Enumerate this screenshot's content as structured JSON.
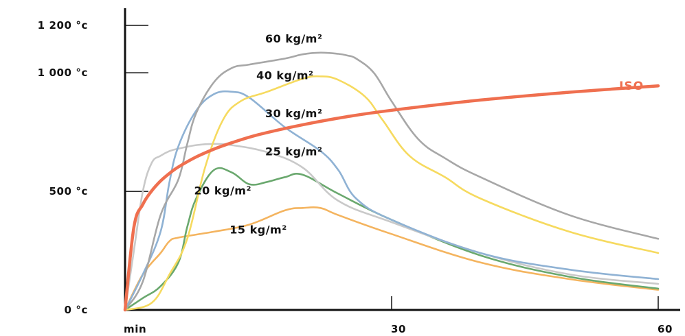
{
  "chart_data": {
    "type": "line",
    "title": "",
    "xlabel": "",
    "ylabel": "",
    "xlim": [
      0,
      60
    ],
    "ylim": [
      0,
      1200
    ],
    "grid": false,
    "legend": "none",
    "x_ticks": [
      {
        "value": 0,
        "label": "min"
      },
      {
        "value": 30,
        "label": "30"
      },
      {
        "value": 60,
        "label": "60"
      }
    ],
    "y_ticks": [
      {
        "value": 0,
        "label": "0 °c"
      },
      {
        "value": 500,
        "label": "500 °c"
      },
      {
        "value": 1000,
        "label": "1 000 °c"
      },
      {
        "value": 1200,
        "label": "1 200 °c"
      }
    ],
    "series": [
      {
        "name": "15 kg/m²",
        "color": "#f4b45f",
        "label_at": [
          15,
          340
        ],
        "x": [
          0,
          2,
          4,
          5,
          6,
          10,
          14,
          18,
          20,
          22,
          24,
          30,
          40,
          50,
          60
        ],
        "y": [
          0,
          150,
          240,
          290,
          305,
          330,
          360,
          420,
          430,
          430,
          400,
          320,
          200,
          130,
          85
        ]
      },
      {
        "name": "20 kg/m²",
        "color": "#6aa86e",
        "label_at": [
          11,
          505
        ],
        "x": [
          0,
          2,
          4,
          6,
          7,
          8,
          10,
          12,
          14,
          16,
          18,
          20,
          24,
          30,
          40,
          50,
          60
        ],
        "y": [
          0,
          50,
          100,
          200,
          350,
          470,
          590,
          580,
          530,
          540,
          560,
          570,
          490,
          380,
          230,
          140,
          90
        ]
      },
      {
        "name": "25 kg/m²",
        "color": "#c9c9c9",
        "label_at": [
          19,
          670
        ],
        "x": [
          0,
          1,
          2,
          3,
          4,
          5,
          6,
          8,
          10,
          12,
          16,
          20,
          24,
          30,
          40,
          50,
          60
        ],
        "y": [
          0,
          250,
          500,
          620,
          650,
          670,
          680,
          695,
          700,
          695,
          665,
          600,
          460,
          370,
          240,
          150,
          110
        ]
      },
      {
        "name": "30 kg/m²",
        "color": "#8fb2d4",
        "label_at": [
          19,
          830
        ],
        "x": [
          0,
          2,
          4,
          5,
          6,
          8,
          10,
          12,
          14,
          18,
          22,
          24,
          26,
          30,
          40,
          50,
          60
        ],
        "y": [
          0,
          150,
          330,
          540,
          690,
          840,
          910,
          920,
          895,
          770,
          670,
          590,
          470,
          380,
          240,
          170,
          130
        ]
      },
      {
        "name": "40 kg/m²",
        "color": "#f6da5f",
        "label_at": [
          18,
          990
        ],
        "x": [
          0,
          3,
          5,
          7,
          9,
          11,
          13,
          16,
          20,
          22,
          24,
          27,
          29,
          32,
          36,
          40,
          50,
          60
        ],
        "y": [
          0,
          30,
          150,
          300,
          600,
          800,
          880,
          920,
          975,
          985,
          970,
          900,
          800,
          650,
          560,
          470,
          330,
          240
        ]
      },
      {
        "name": "60 kg/m²",
        "color": "#a7a7a7",
        "label_at": [
          19,
          1145
        ],
        "x": [
          0,
          2,
          4,
          6,
          7,
          8,
          10,
          12,
          14,
          18,
          20,
          22,
          24,
          25,
          26,
          28,
          30,
          33,
          36,
          40,
          50,
          60
        ],
        "y": [
          0,
          120,
          400,
          550,
          700,
          830,
          960,
          1020,
          1035,
          1060,
          1078,
          1085,
          1080,
          1073,
          1060,
          1000,
          880,
          720,
          640,
          560,
          400,
          300
        ]
      },
      {
        "name": "ISO",
        "color": "#ef6f4f",
        "label_at": [
          57,
          945
        ],
        "x": [
          0,
          1,
          2,
          3,
          4,
          5,
          6,
          8,
          10,
          12,
          15,
          20,
          25,
          30,
          40,
          50,
          60
        ],
        "y": [
          0,
          349,
          445,
          502,
          544,
          576,
          603,
          645,
          678,
          705,
          739,
          781,
          815,
          842,
          885,
          918,
          945
        ]
      }
    ]
  }
}
